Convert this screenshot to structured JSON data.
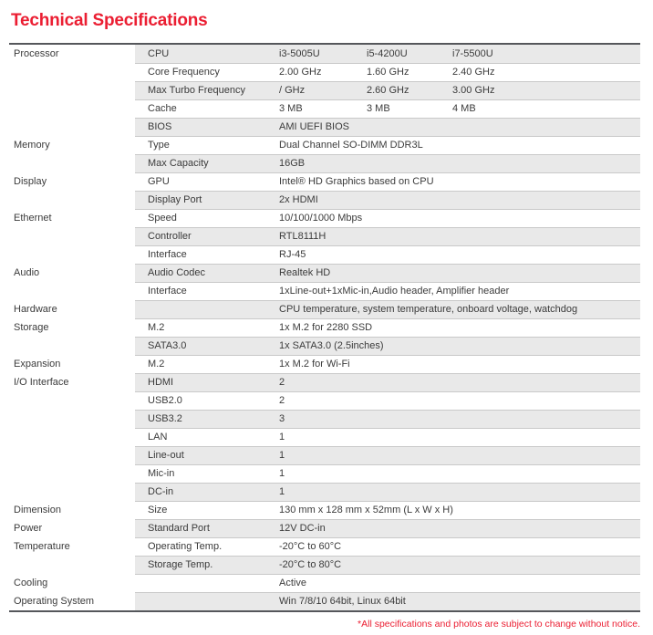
{
  "page": {
    "title": "Technical Specifications",
    "footnote": "*All specifications and photos are subject to change without notice."
  },
  "colors": {
    "accent_red": "#eb1e32",
    "row_gray": "#e9e9e9",
    "border_dark": "#55575b",
    "border_light": "#c9c9c9",
    "text": "#3b3b3b"
  },
  "table": {
    "rows": [
      {
        "category": "Processor",
        "label": "CPU",
        "values": [
          "i3-5005U",
          "i5-4200U",
          "i7-5500U"
        ]
      },
      {
        "category": "",
        "label": "Core Frequency",
        "values": [
          "2.00 GHz",
          "1.60 GHz",
          "2.40 GHz"
        ]
      },
      {
        "category": "",
        "label": "Max Turbo Frequency",
        "values": [
          "/ GHz",
          "2.60 GHz",
          "3.00 GHz"
        ]
      },
      {
        "category": "",
        "label": "Cache",
        "values": [
          "3 MB",
          "3 MB",
          "4 MB"
        ]
      },
      {
        "category": "",
        "label": "BIOS",
        "values": [
          "AMI UEFI BIOS"
        ]
      },
      {
        "category": "Memory",
        "label": "Type",
        "values": [
          "Dual Channel SO-DIMM DDR3L"
        ]
      },
      {
        "category": "",
        "label": "Max Capacity",
        "values": [
          "16GB"
        ]
      },
      {
        "category": "Display",
        "label": "GPU",
        "values": [
          "Intel® HD Graphics based on CPU"
        ]
      },
      {
        "category": "",
        "label": "Display Port",
        "values": [
          "2x HDMI"
        ]
      },
      {
        "category": "Ethernet",
        "label": "Speed",
        "values": [
          "10/100/1000 Mbps"
        ]
      },
      {
        "category": "",
        "label": "Controller",
        "values": [
          "RTL8111H"
        ]
      },
      {
        "category": "",
        "label": "Interface",
        "values": [
          "RJ-45"
        ]
      },
      {
        "category": "Audio",
        "label": "Audio Codec",
        "values": [
          "Realtek HD"
        ]
      },
      {
        "category": "",
        "label": "Interface",
        "values": [
          "1xLine-out+1xMic-in,Audio header, Amplifier header"
        ]
      },
      {
        "category": "Hardware",
        "label": "",
        "values": [
          "CPU temperature, system temperature, onboard voltage, watchdog"
        ]
      },
      {
        "category": "Storage",
        "label": "M.2",
        "values": [
          "1x M.2 for 2280 SSD"
        ]
      },
      {
        "category": "",
        "label": "SATA3.0",
        "values": [
          "1x SATA3.0 (2.5inches)"
        ]
      },
      {
        "category": "Expansion",
        "label": "M.2",
        "values": [
          "1x M.2 for Wi-Fi"
        ]
      },
      {
        "category": "I/O Interface",
        "label": "HDMI",
        "values": [
          "2"
        ]
      },
      {
        "category": "",
        "label": "USB2.0",
        "values": [
          "2"
        ]
      },
      {
        "category": "",
        "label": "USB3.2",
        "values": [
          "3"
        ]
      },
      {
        "category": "",
        "label": "LAN",
        "values": [
          "1"
        ]
      },
      {
        "category": "",
        "label": "Line-out",
        "values": [
          "1"
        ]
      },
      {
        "category": "",
        "label": "Mic-in",
        "values": [
          "1"
        ]
      },
      {
        "category": "",
        "label": "DC-in",
        "values": [
          "1"
        ]
      },
      {
        "category": "Dimension",
        "label": "Size",
        "values": [
          "130 mm x 128 mm x 52mm (L x W x H)"
        ]
      },
      {
        "category": "Power",
        "label": "Standard Port",
        "values": [
          "12V DC-in"
        ]
      },
      {
        "category": "Temperature",
        "label": "Operating Temp.",
        "values": [
          "-20°C to 60°C"
        ]
      },
      {
        "category": "",
        "label": "Storage Temp.",
        "values": [
          "-20°C to 80°C"
        ]
      },
      {
        "category": "Cooling",
        "label": "",
        "values": [
          "Active"
        ]
      },
      {
        "category": "Operating System",
        "label": "",
        "values": [
          "Win 7/8/10 64bit, Linux 64bit"
        ]
      }
    ]
  }
}
